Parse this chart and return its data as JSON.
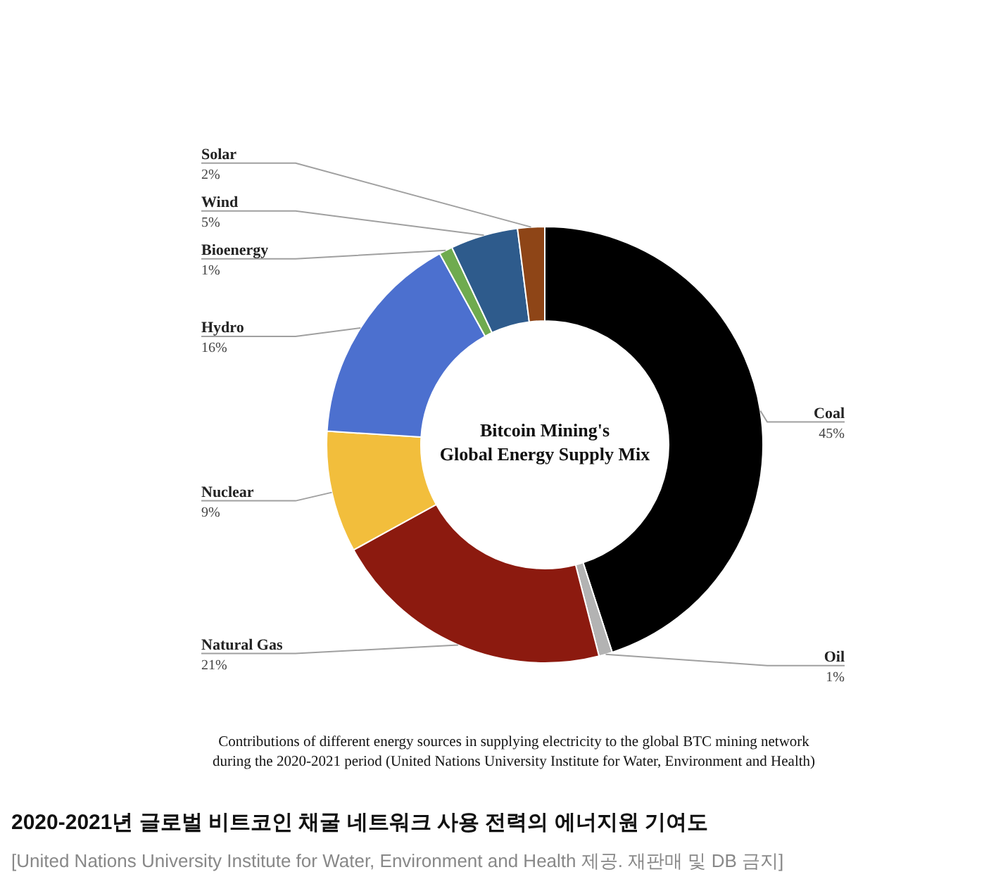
{
  "chart_data": {
    "type": "donut",
    "title": "Bitcoin Mining's\nGlobal Energy Supply Mix",
    "categories": [
      "Coal",
      "Oil",
      "Natural Gas",
      "Nuclear",
      "Hydro",
      "Bioenergy",
      "Wind",
      "Solar"
    ],
    "values": [
      45,
      1,
      21,
      9,
      16,
      1,
      5,
      2
    ],
    "value_labels": [
      "45%",
      "1%",
      "21%",
      "9%",
      "16%",
      "1%",
      "5%",
      "2%"
    ],
    "colors": [
      "#000000",
      "#b3b3b3",
      "#8c1a0f",
      "#f2be3c",
      "#4c70cf",
      "#6fab4f",
      "#2e5b8c",
      "#8e4517"
    ],
    "annotations": [
      "Contributions of different energy sources in supplying electricity to the global BTC mining network\nduring the 2020-2021 period (United Nations University Institute for Water, Environment and Health)",
      "2020-2021년 글로벌 비트코인 채굴 네트워크 사용 전력의 에너지원 기여도",
      "[United Nations University Institute for Water, Environment and Health 제공. 재판매 및 DB 금지]"
    ]
  }
}
